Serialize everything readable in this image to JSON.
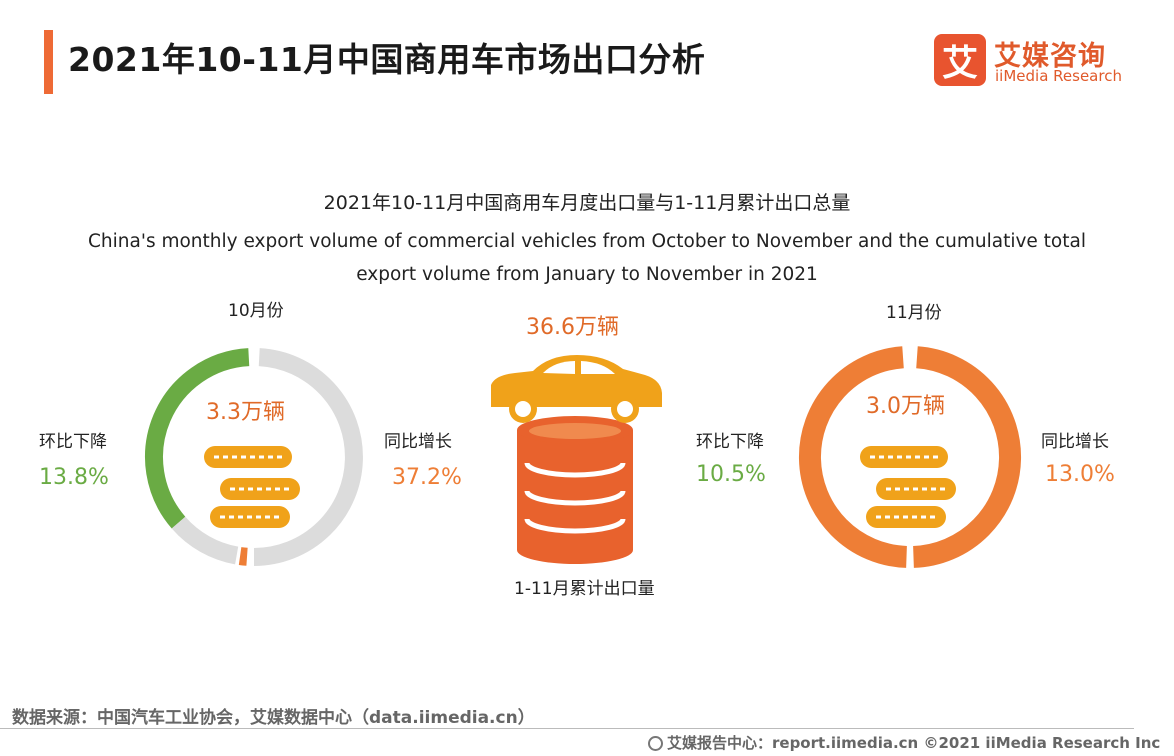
{
  "header": {
    "title": "2021年10-11月中国商用车市场出口分析",
    "brand_mark": "艾",
    "brand_name": "艾媒咨询",
    "brand_sub": "iiMedia Research"
  },
  "chart_data": {
    "type": "infographic",
    "title": "2021年10-11月中国商用车月度出口量与1-11月累计出口总量",
    "subtitle": "China's monthly export volume of commercial vehicles from October to November and the cumulative total export volume from January to November in 2021",
    "months": [
      {
        "label": "10月份",
        "volume": 3.3,
        "volume_text": "3.3万辆",
        "mom_label": "环比下降",
        "mom_change_pct": -13.8,
        "mom_text": "13.8%",
        "yoy_label": "同比增长",
        "yoy_change_pct": 37.2,
        "yoy_text": "37.2%"
      },
      {
        "label": "11月份",
        "volume": 3.0,
        "volume_text": "3.0万辆",
        "mom_label": "环比下降",
        "mom_change_pct": -10.5,
        "mom_text": "10.5%",
        "yoy_label": "同比增长",
        "yoy_change_pct": 13.0,
        "yoy_text": "13.0%"
      }
    ],
    "cumulative": {
      "value": 36.6,
      "value_text": "36.6万辆",
      "label": "1-11月累计出口量"
    },
    "colors": {
      "green": "#6aab44",
      "orange": "#ee7e36",
      "gray": "#dcdcdc",
      "coin": "#f0a21a",
      "car": "#f0a21a",
      "stack": "#e8622d"
    }
  },
  "footer": {
    "source": "数据来源：中国汽车工业协会，艾媒数据中心（data.iimedia.cn）",
    "credit": "艾媒报告中心：report.iimedia.cn   ©2021  iiMedia Research  Inc"
  }
}
